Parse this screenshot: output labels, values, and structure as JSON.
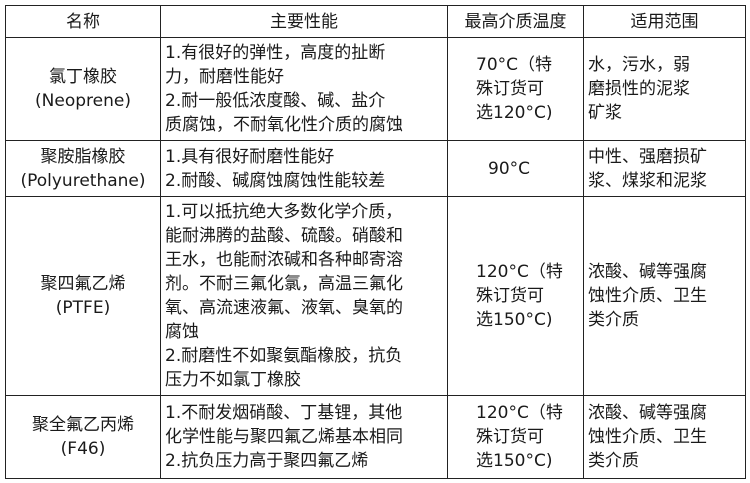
{
  "headers": [
    "名称",
    "主要性能",
    "最高介质温度",
    "适用范围"
  ],
  "rows": [
    {
      "name": [
        "氯丁橡胶",
        "(Neoprene)"
      ],
      "performance": [
        "1.有很好的弹性，高度的扯断",
        "力，耐磨性能好",
        "2.耐一般低浓度酸、碱、盐介",
        "质腐蚀，不耐氧化性介质的腐蚀"
      ],
      "temperature": [
        "70°C（特",
        "殊订货可",
        "选120°C)"
      ],
      "scope": [
        "水，污水，弱",
        "磨损性的泥浆",
        "矿浆"
      ]
    },
    {
      "name": [
        "聚胺脂橡胶",
        "(Polyurethane)"
      ],
      "performance": [
        "1.具有很好耐磨性能好",
        "2.耐酸、碱腐蚀腐蚀性能较差"
      ],
      "temperature": [
        "90°C"
      ],
      "scope": [
        "中性、强磨损矿",
        "浆、煤浆和泥浆"
      ]
    },
    {
      "name": [
        "聚四氟乙烯",
        "(PTFE)"
      ],
      "performance": [
        "1.可以抵抗绝大多数化学介质，",
        "能耐沸腾的盐酸、硫酸。硝酸和",
        "王水，也能耐浓碱和各种邮寄溶",
        "剂。不耐三氟化氯，高温三氟化",
        "氧、高流速液氟、液氧、臭氧的",
        "腐蚀",
        "2.耐磨性不如聚氨酯橡胶，抗负",
        "压力不如氯丁橡胶"
      ],
      "temperature": [
        "120°C（特",
        "殊订货可",
        "选150°C)"
      ],
      "scope": [
        "浓酸、碱等强腐",
        "蚀性介质、卫生",
        "类介质"
      ]
    },
    {
      "name": [
        "聚全氟乙丙烯",
        "(F46)"
      ],
      "performance": [
        "1.不耐发烟硝酸、丁基锂，其他",
        "化学性能与聚四氟乙烯基本相同",
        "2.抗负压力高于聚四氟乙烯"
      ],
      "temperature": [
        "120°C（特",
        "殊订货可",
        "选150°C)"
      ],
      "scope": [
        "浓酸、碱等强腐",
        "蚀性介质、卫生",
        "类介质"
      ]
    }
  ]
}
